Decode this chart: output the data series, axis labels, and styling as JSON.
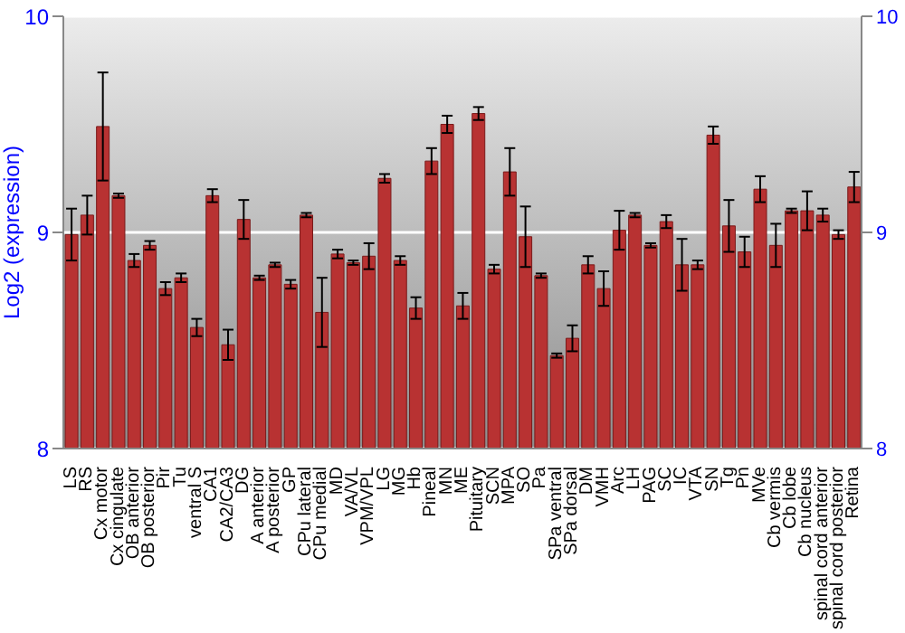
{
  "chart_data": {
    "type": "bar",
    "ylabel": "Log2 (expression)",
    "categories": [
      "LS",
      "RS",
      "Cx motor",
      "Cx cingulate",
      "OB anterior",
      "OB posterior",
      "Pir",
      "Tu",
      "ventral S",
      "CA1",
      "CA2/CA3",
      "DG",
      "A anterior",
      "A posterior",
      "GP",
      "CPu lateral",
      "CPu medial",
      "MD",
      "VA/VL",
      "VPM/VPL",
      "LG",
      "MG",
      "Hb",
      "Pineal",
      "MN",
      "ME",
      "Pituitary",
      "SCN",
      "MPA",
      "SO",
      "Pa",
      "SPa ventral",
      "SPa dorsal",
      "DM",
      "VMH",
      "Arc",
      "LH",
      "PAG",
      "SC",
      "IC",
      "VTA",
      "SN",
      "Tg",
      "Pn",
      "MVe",
      "Cb vermis",
      "Cb lobe",
      "Cb nucleus",
      "spinal cord anterior",
      "spinal cord posterior",
      "Retina"
    ],
    "values": [
      8.99,
      9.08,
      9.49,
      9.17,
      8.87,
      8.94,
      8.74,
      8.79,
      8.56,
      9.17,
      8.48,
      9.06,
      8.79,
      8.85,
      8.76,
      9.08,
      8.63,
      8.9,
      8.86,
      8.89,
      9.25,
      8.87,
      8.65,
      9.33,
      9.5,
      8.66,
      9.55,
      8.83,
      9.28,
      8.98,
      8.8,
      8.43,
      8.51,
      8.85,
      8.74,
      9.01,
      9.08,
      8.94,
      9.05,
      8.85,
      8.85,
      9.45,
      9.03,
      8.91,
      9.2,
      8.94,
      9.1,
      9.1,
      9.08,
      8.99,
      9.21
    ],
    "errors": [
      0.12,
      0.09,
      0.25,
      0.01,
      0.03,
      0.02,
      0.03,
      0.02,
      0.04,
      0.03,
      0.07,
      0.09,
      0.01,
      0.01,
      0.02,
      0.01,
      0.16,
      0.02,
      0.01,
      0.06,
      0.02,
      0.02,
      0.05,
      0.06,
      0.04,
      0.06,
      0.03,
      0.02,
      0.11,
      0.14,
      0.01,
      0.01,
      0.06,
      0.04,
      0.08,
      0.09,
      0.01,
      0.01,
      0.03,
      0.12,
      0.02,
      0.04,
      0.12,
      0.07,
      0.06,
      0.1,
      0.01,
      0.09,
      0.03,
      0.02,
      0.07
    ],
    "color": "#b83232",
    "ylim": [
      8,
      10
    ],
    "yticks": [
      8,
      9,
      10
    ],
    "y2lim": [
      8,
      10
    ],
    "y2ticks": [
      8,
      9,
      10
    ],
    "grid": "y"
  }
}
